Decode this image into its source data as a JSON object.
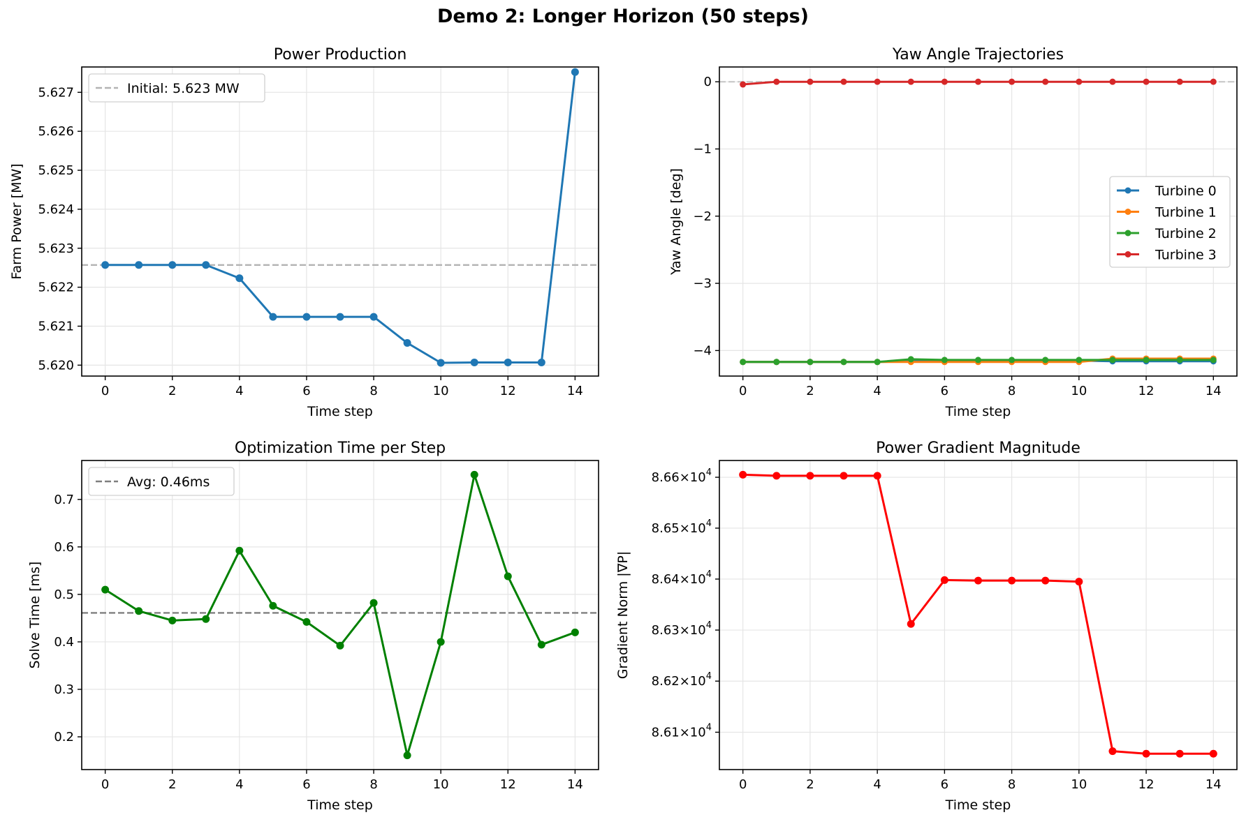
{
  "suptitle": "Demo 2: Longer Horizon (50 steps)",
  "chart_data": [
    {
      "type": "line",
      "title": "Power Production",
      "xlabel": "Time step",
      "ylabel": "Farm Power [MW]",
      "xlim": [
        -0.7,
        14.7
      ],
      "ylim": [
        5.61972,
        5.62765
      ],
      "xticks": [
        0,
        2,
        4,
        6,
        8,
        10,
        12,
        14
      ],
      "yticks": [
        5.62,
        5.621,
        5.622,
        5.623,
        5.624,
        5.625,
        5.626,
        5.627
      ],
      "ytick_labels": [
        "5.620",
        "5.621",
        "5.622",
        "5.623",
        "5.624",
        "5.625",
        "5.626",
        "5.627"
      ],
      "grid": true,
      "legend_position": "upper left",
      "series": [
        {
          "color": "#1f77b4",
          "marker": true,
          "x": [
            0,
            1,
            2,
            3,
            4,
            5,
            6,
            7,
            8,
            9,
            10,
            11,
            12,
            13,
            14
          ],
          "y": [
            5.62257,
            5.62257,
            5.62257,
            5.62257,
            5.62223,
            5.62124,
            5.62124,
            5.62124,
            5.62124,
            5.62057,
            5.62006,
            5.62007,
            5.62007,
            5.62007,
            5.62752
          ]
        }
      ],
      "reference_lines": [
        {
          "name": "Initial: 5.623 MW",
          "y": 5.62257,
          "color": "#b3b3b3",
          "style": "dashed"
        }
      ]
    },
    {
      "type": "line",
      "title": "Yaw Angle Trajectories",
      "xlabel": "Time step",
      "ylabel": "Yaw Angle [deg]",
      "xlim": [
        -0.7,
        14.7
      ],
      "ylim": [
        -4.38,
        0.22
      ],
      "xticks": [
        0,
        2,
        4,
        6,
        8,
        10,
        12,
        14
      ],
      "yticks": [
        0,
        -1,
        -2,
        -3,
        -4
      ],
      "ytick_labels": [
        "0",
        "−1",
        "−2",
        "−3",
        "−4"
      ],
      "grid": true,
      "legend_position": "center right",
      "series": [
        {
          "name": "Turbine 0",
          "color": "#1f77b4",
          "marker": true,
          "x": [
            0,
            1,
            2,
            3,
            4,
            5,
            6,
            7,
            8,
            9,
            10,
            11,
            12,
            13,
            14
          ],
          "y": [
            -4.17,
            -4.17,
            -4.17,
            -4.17,
            -4.17,
            -4.16,
            -4.15,
            -4.15,
            -4.15,
            -4.15,
            -4.15,
            -4.16,
            -4.16,
            -4.16,
            -4.16
          ]
        },
        {
          "name": "Turbine 1",
          "color": "#ff7f0e",
          "marker": true,
          "x": [
            0,
            1,
            2,
            3,
            4,
            5,
            6,
            7,
            8,
            9,
            10,
            11,
            12,
            13,
            14
          ],
          "y": [
            -4.17,
            -4.17,
            -4.17,
            -4.17,
            -4.17,
            -4.17,
            -4.17,
            -4.17,
            -4.17,
            -4.17,
            -4.17,
            -4.12,
            -4.12,
            -4.12,
            -4.12
          ]
        },
        {
          "name": "Turbine 2",
          "color": "#2ca02c",
          "marker": true,
          "x": [
            0,
            1,
            2,
            3,
            4,
            5,
            6,
            7,
            8,
            9,
            10,
            11,
            12,
            13,
            14
          ],
          "y": [
            -4.17,
            -4.17,
            -4.17,
            -4.17,
            -4.17,
            -4.13,
            -4.14,
            -4.14,
            -4.14,
            -4.14,
            -4.14,
            -4.14,
            -4.14,
            -4.14,
            -4.14
          ]
        },
        {
          "name": "Turbine 3",
          "color": "#d62728",
          "marker": true,
          "x": [
            0,
            1,
            2,
            3,
            4,
            5,
            6,
            7,
            8,
            9,
            10,
            11,
            12,
            13,
            14
          ],
          "y": [
            -0.04,
            0,
            0,
            0,
            0,
            0,
            0,
            0,
            0,
            0,
            0,
            0,
            0,
            0,
            0
          ]
        }
      ],
      "reference_lines": [
        {
          "y": 0,
          "color": "#cccccc",
          "style": "dashed"
        }
      ]
    },
    {
      "type": "line",
      "title": "Optimization Time per Step",
      "xlabel": "Time step",
      "ylabel": "Solve Time [ms]",
      "xlim": [
        -0.7,
        14.7
      ],
      "ylim": [
        0.131,
        0.782
      ],
      "xticks": [
        0,
        2,
        4,
        6,
        8,
        10,
        12,
        14
      ],
      "yticks": [
        0.2,
        0.3,
        0.4,
        0.5,
        0.6,
        0.7
      ],
      "ytick_labels": [
        "0.2",
        "0.3",
        "0.4",
        "0.5",
        "0.6",
        "0.7"
      ],
      "grid": true,
      "legend_position": "upper left",
      "series": [
        {
          "color": "#008000",
          "marker": true,
          "x": [
            0,
            1,
            2,
            3,
            4,
            5,
            6,
            7,
            8,
            9,
            10,
            11,
            12,
            13,
            14
          ],
          "y": [
            0.51,
            0.465,
            0.445,
            0.448,
            0.592,
            0.476,
            0.442,
            0.392,
            0.482,
            0.161,
            0.4,
            0.752,
            0.538,
            0.394,
            0.42
          ]
        }
      ],
      "reference_lines": [
        {
          "name": "Avg: 0.46ms",
          "y": 0.461,
          "color": "#7f7f7f",
          "style": "dashed"
        }
      ]
    },
    {
      "type": "line",
      "title": "Power Gradient Magnitude",
      "xlabel": "Time step",
      "ylabel": "Gradient Norm |∇P|",
      "xlim": [
        -0.7,
        14.7
      ],
      "ylim": [
        86027,
        86633
      ],
      "yscale": "log",
      "xticks": [
        0,
        2,
        4,
        6,
        8,
        10,
        12,
        14
      ],
      "yticks": [
        86100,
        86200,
        86300,
        86400,
        86500,
        86600
      ],
      "ytick_labels": [
        "8.61",
        "8.62",
        "8.63",
        "8.64",
        "8.65",
        "8.66"
      ],
      "ytick_suffix": "×10",
      "ytick_exponent": "4",
      "grid": true,
      "series": [
        {
          "color": "#ff0000",
          "marker": true,
          "x": [
            0,
            1,
            2,
            3,
            4,
            5,
            6,
            7,
            8,
            9,
            10,
            11,
            12,
            13,
            14
          ],
          "y": [
            86605,
            86603,
            86603,
            86603,
            86603,
            86312,
            86398,
            86397,
            86397,
            86397,
            86395,
            86063,
            86058,
            86058,
            86058
          ]
        }
      ]
    }
  ]
}
